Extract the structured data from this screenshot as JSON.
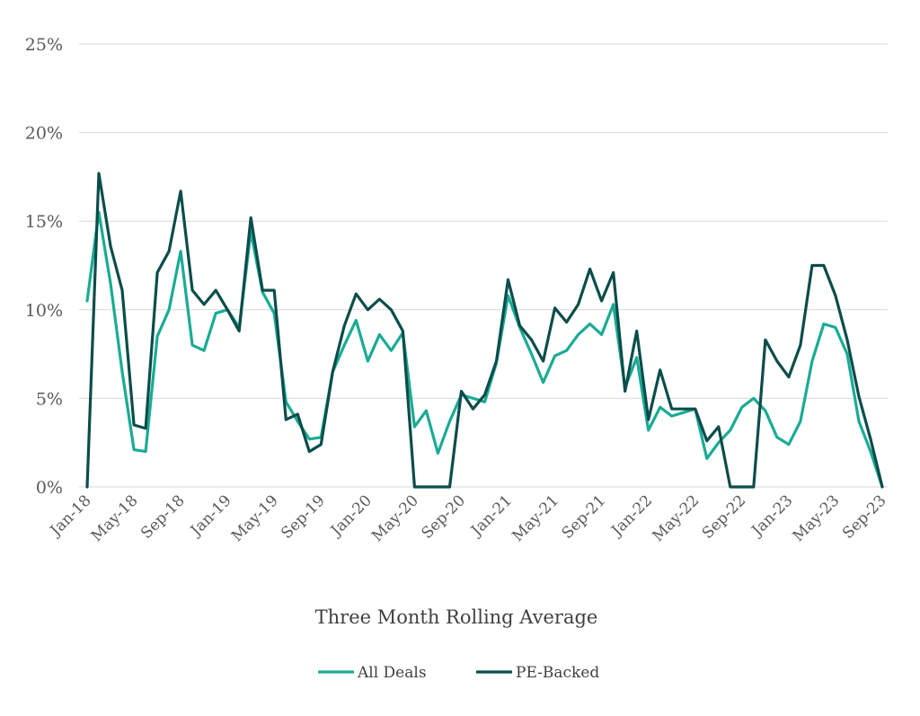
{
  "chart_data": {
    "type": "line",
    "title": "",
    "xlabel": "Three Month Rolling Average",
    "ylabel": "",
    "ylim": [
      0,
      25
    ],
    "yticks": [
      "0%",
      "5%",
      "10%",
      "15%",
      "20%",
      "25%"
    ],
    "grid": true,
    "legend_position": "bottom",
    "x": [
      "Jan-18",
      "Feb-18",
      "Mar-18",
      "Apr-18",
      "May-18",
      "Jun-18",
      "Jul-18",
      "Aug-18",
      "Sep-18",
      "Oct-18",
      "Nov-18",
      "Dec-18",
      "Jan-19",
      "Feb-19",
      "Mar-19",
      "Apr-19",
      "May-19",
      "Jun-19",
      "Jul-19",
      "Aug-19",
      "Sep-19",
      "Oct-19",
      "Nov-19",
      "Dec-19",
      "Jan-20",
      "Feb-20",
      "Mar-20",
      "Apr-20",
      "May-20",
      "Jun-20",
      "Jul-20",
      "Aug-20",
      "Sep-20",
      "Oct-20",
      "Nov-20",
      "Dec-20",
      "Jan-21",
      "Feb-21",
      "Mar-21",
      "Apr-21",
      "May-21",
      "Jun-21",
      "Jul-21",
      "Aug-21",
      "Sep-21",
      "Oct-21",
      "Nov-21",
      "Dec-21",
      "Jan-22",
      "Feb-22",
      "Mar-22",
      "Apr-22",
      "May-22",
      "Jun-22",
      "Jul-22",
      "Aug-22",
      "Sep-22",
      "Oct-22",
      "Nov-22",
      "Dec-22",
      "Jan-23",
      "Feb-23",
      "Mar-23",
      "Apr-23",
      "May-23",
      "Jun-23",
      "Jul-23",
      "Aug-23",
      "Sep-23"
    ],
    "xtick_labels": [
      "Jan-18",
      "May-18",
      "Sep-18",
      "Jan-19",
      "May-19",
      "Sep-19",
      "Jan-20",
      "May-20",
      "Sep-20",
      "Jan-21",
      "May-21",
      "Sep-21",
      "Jan-22",
      "May-22",
      "Sep-22",
      "Jan-23",
      "May-23",
      "Sep-23"
    ],
    "series": [
      {
        "name": "All Deals",
        "color": "#1aab95",
        "values": [
          10.5,
          15.5,
          11.5,
          6.5,
          2.1,
          2.0,
          8.5,
          10.0,
          13.3,
          8.0,
          7.7,
          9.8,
          10.0,
          9.0,
          14.4,
          11.0,
          9.8,
          4.8,
          3.7,
          2.7,
          2.8,
          6.5,
          8.0,
          9.4,
          7.1,
          8.6,
          7.7,
          8.7,
          3.4,
          4.3,
          1.9,
          3.7,
          5.2,
          5.0,
          4.8,
          7.0,
          10.8,
          9.0,
          7.5,
          5.9,
          7.4,
          7.7,
          8.6,
          9.2,
          8.6,
          10.3,
          5.6,
          7.3,
          3.2,
          4.5,
          4.0,
          4.2,
          4.4,
          1.6,
          2.5,
          3.2,
          4.5,
          5.0,
          4.3,
          2.8,
          2.4,
          3.7,
          7.1,
          9.2,
          9.0,
          7.5,
          3.7,
          2.0,
          0.0
        ]
      },
      {
        "name": "PE-Backed",
        "color": "#0b4d4a",
        "values": [
          0.0,
          17.7,
          13.6,
          11.1,
          3.5,
          3.3,
          12.1,
          13.3,
          16.7,
          11.1,
          10.3,
          11.1,
          10.0,
          8.8,
          15.2,
          11.1,
          11.1,
          3.8,
          4.1,
          2.0,
          2.4,
          6.5,
          9.1,
          10.9,
          10.0,
          10.6,
          10.0,
          8.8,
          0.0,
          0.0,
          0.0,
          0.0,
          5.4,
          4.4,
          5.2,
          7.1,
          11.7,
          9.1,
          8.3,
          7.1,
          10.1,
          9.3,
          10.3,
          12.3,
          10.5,
          12.1,
          5.4,
          8.8,
          3.8,
          6.6,
          4.4,
          4.4,
          4.4,
          2.6,
          3.4,
          0.0,
          0.0,
          0.0,
          8.3,
          7.1,
          6.2,
          8.0,
          12.5,
          12.5,
          10.8,
          8.3,
          5.1,
          2.7,
          0.0
        ]
      }
    ]
  }
}
